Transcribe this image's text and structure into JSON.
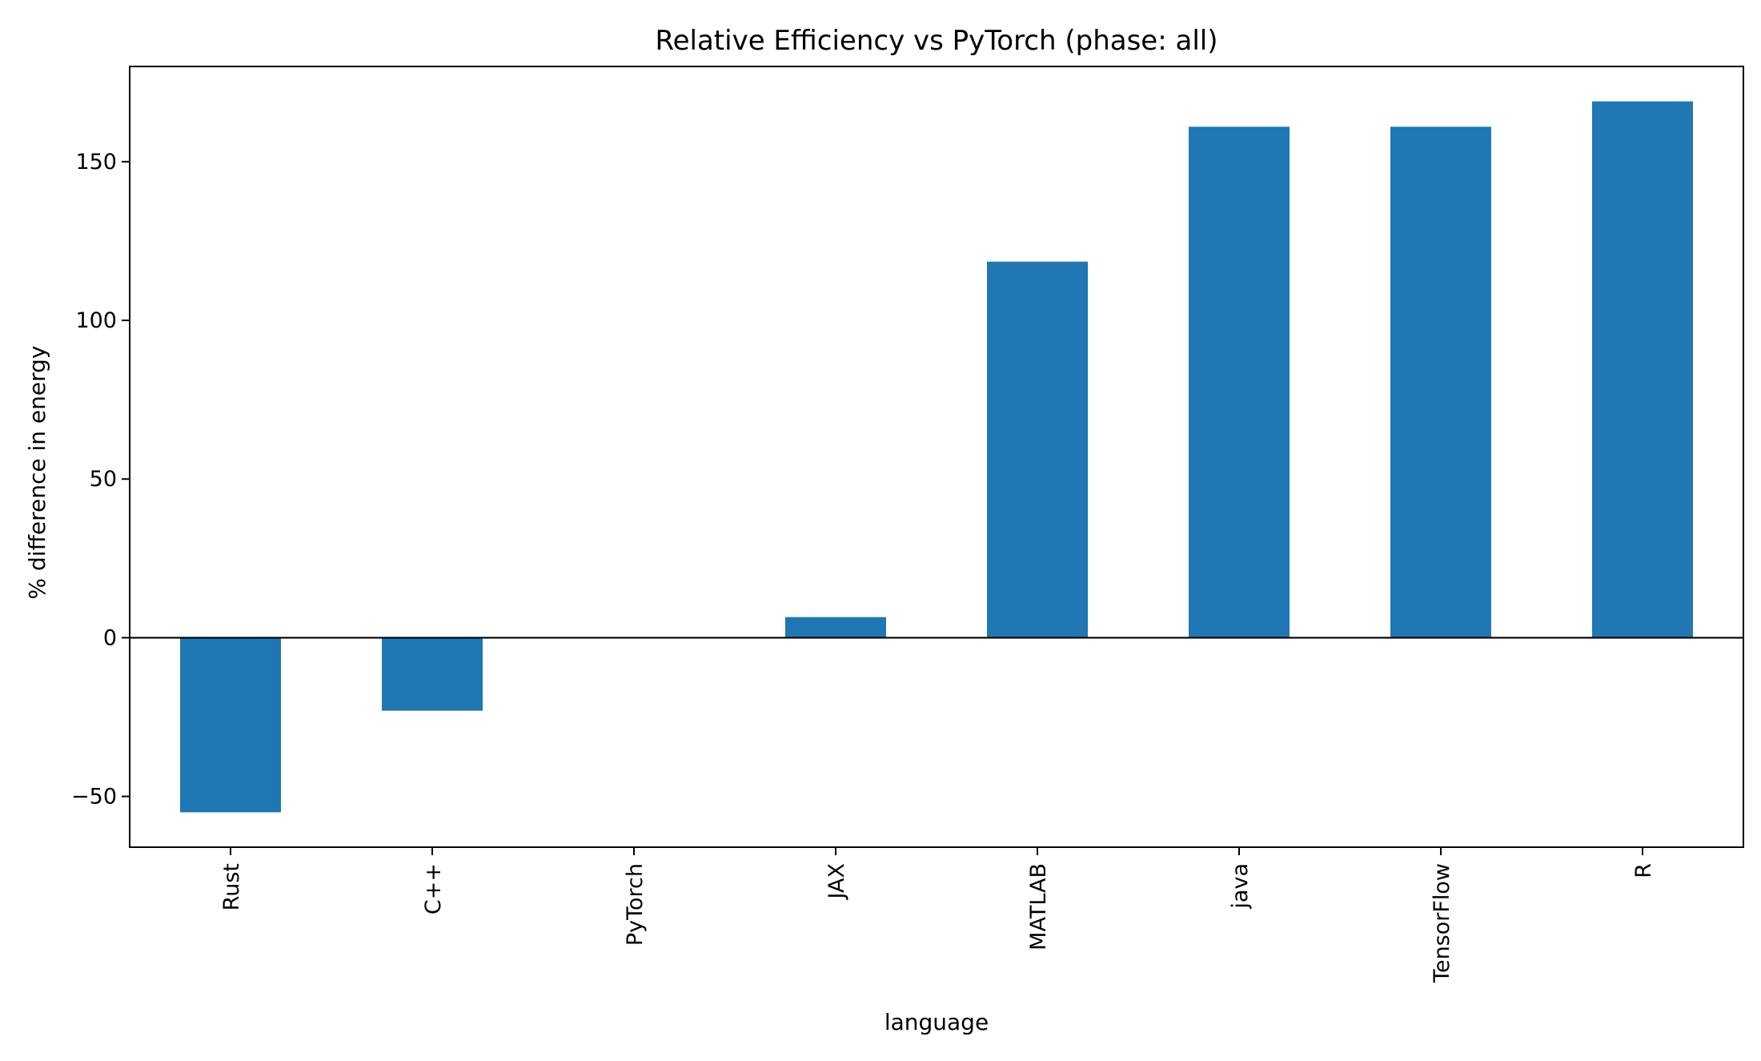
{
  "chart_data": {
    "type": "bar",
    "title": "Relative Efficiency vs PyTorch (phase: all)",
    "xlabel": "language",
    "ylabel": "% difference in energy",
    "categories": [
      "Rust",
      "C++",
      "PyTorch",
      "JAX",
      "MATLAB",
      "java",
      "TensorFlow",
      "R"
    ],
    "values": [
      -55,
      -23,
      0,
      6.5,
      118.5,
      161,
      161,
      169
    ],
    "ylim": [
      -66,
      180
    ],
    "yticks": [
      -50,
      0,
      50,
      100,
      150
    ],
    "ytick_labels": [
      "−50",
      "0",
      "50",
      "100",
      "150"
    ],
    "bar_color": "#1f77b4",
    "zero_line": true,
    "grid": false,
    "legend": "none"
  }
}
